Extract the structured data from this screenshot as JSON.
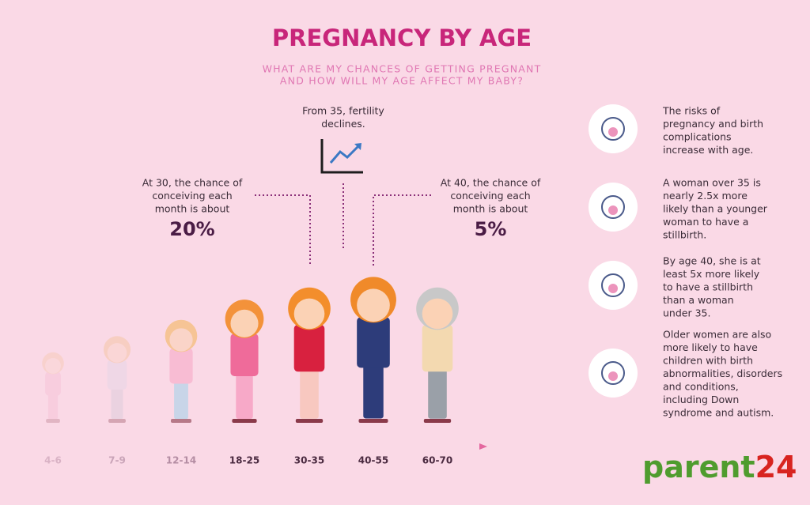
{
  "header": {
    "title": "PREGNANCY BY AGE",
    "subtitle": [
      "WHAT ARE MY CHANCES OF GETTING PREGNANT",
      "AND HOW WILL MY AGE AFFECT MY BABY?"
    ]
  },
  "callouts": [
    {
      "lines": [
        "At 30, the chance of",
        "conceiving each",
        "month is about"
      ],
      "figure": "20%"
    },
    {
      "lines": [
        "From 35, fertility",
        "declines."
      ]
    },
    {
      "lines": [
        "At 40, the chance of",
        "conceiving each",
        "month is about"
      ],
      "figure": "5%"
    }
  ],
  "age_groups": [
    "4-6",
    "7-9",
    "12-14",
    "18-25",
    "30-35",
    "40-55",
    "60-70"
  ],
  "risks": [
    [
      "The risks of",
      "pregnancy and birth",
      "complications",
      "increase with age."
    ],
    [
      "A woman over 35 is",
      "nearly 2.5x more",
      "likely than a younger",
      "woman to have a",
      "stillbirth."
    ],
    [
      "By age 40, she is at",
      "least 5x more likely",
      "to have a stillbirth",
      "than a woman",
      "under 35."
    ],
    [
      "Older women are also",
      "more likely to have",
      "children with birth",
      "abnormalities, disorders",
      "and conditions,",
      "including Down",
      "syndrome and autism."
    ]
  ],
  "brand": {
    "name": "parent",
    "number": "24"
  }
}
